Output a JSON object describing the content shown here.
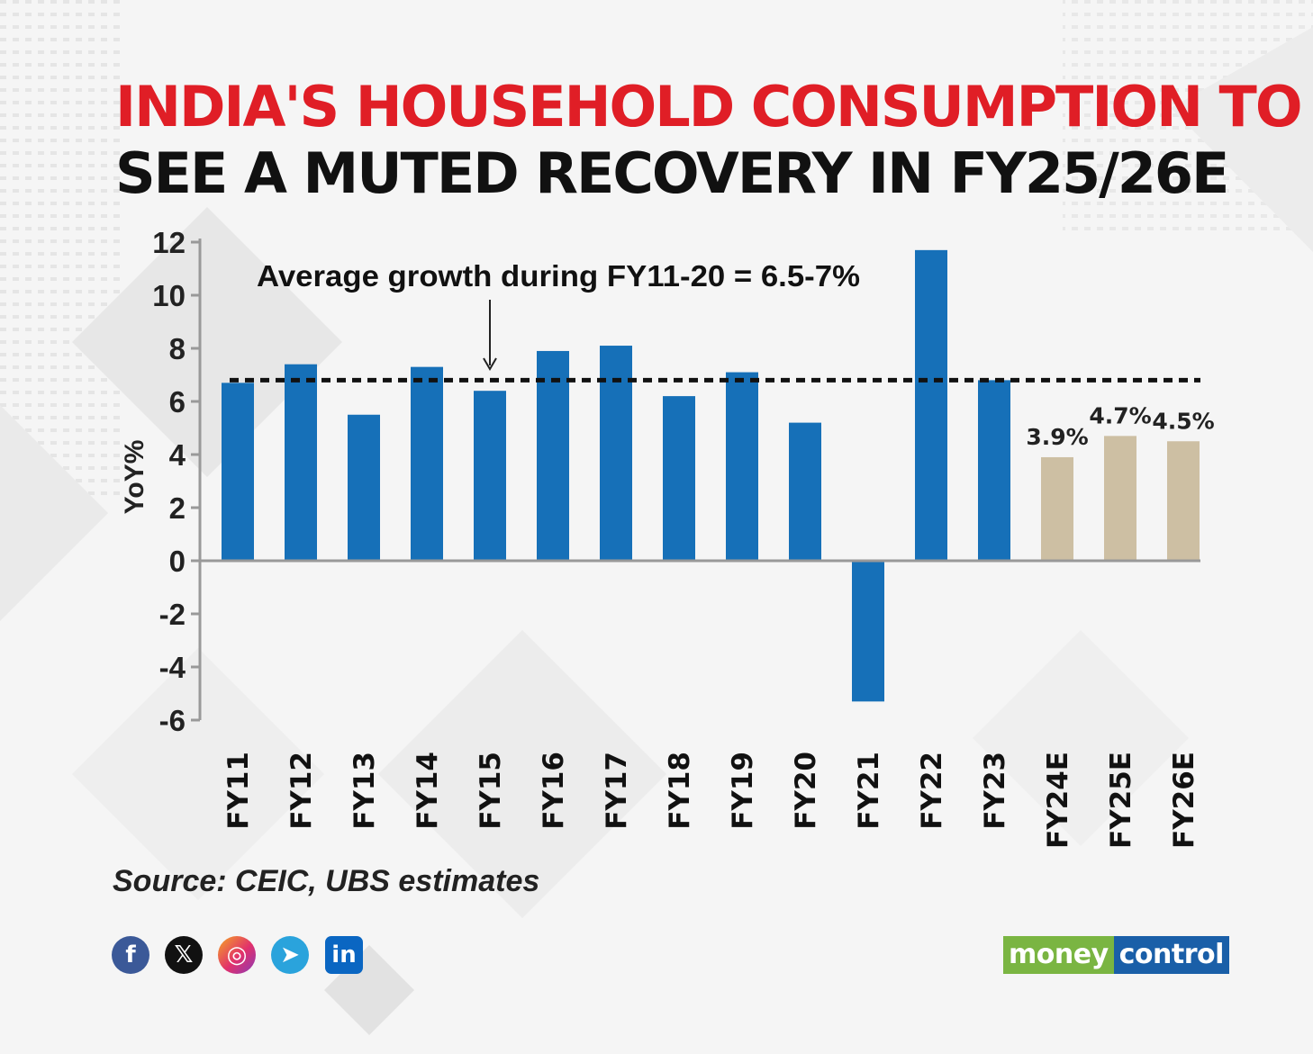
{
  "header": {
    "title_line1": "INDIA'S HOUSEHOLD CONSUMPTION TO",
    "title_line2": "SEE A MUTED RECOVERY IN FY25/26E"
  },
  "chart_data": {
    "type": "bar",
    "categories": [
      "FY11",
      "FY12",
      "FY13",
      "FY14",
      "FY15",
      "FY16",
      "FY17",
      "FY18",
      "FY19",
      "FY20",
      "FY21",
      "FY22",
      "FY23",
      "FY24E",
      "FY25E",
      "FY26E"
    ],
    "values": [
      6.7,
      7.4,
      5.5,
      7.3,
      6.4,
      7.9,
      8.1,
      6.2,
      7.1,
      5.2,
      -5.3,
      11.7,
      6.8,
      3.9,
      4.7,
      4.5
    ],
    "estimate_flags": [
      false,
      false,
      false,
      false,
      false,
      false,
      false,
      false,
      false,
      false,
      false,
      false,
      false,
      true,
      true,
      true
    ],
    "data_labels": [
      "",
      "",
      "",
      "",
      "",
      "",
      "",
      "",
      "",
      "",
      "",
      "",
      "",
      "3.9%",
      "4.7%",
      "4.5%"
    ],
    "ylabel": "YoY%",
    "ylim": [
      -6,
      12
    ],
    "yticks": [
      12,
      10,
      8,
      6,
      4,
      2,
      0,
      -2,
      -4,
      -6
    ],
    "grid": false,
    "reference_line": {
      "value": 6.8,
      "style": "dotted"
    },
    "annotation": {
      "text": "Average growth during FY11-20 = 6.5-7%",
      "points_to": "FY15"
    },
    "colors": {
      "actual": "#1670b8",
      "estimate": "#cdbfa3",
      "axis": "#999999",
      "reference": "#111111"
    }
  },
  "footer": {
    "source": "Source: CEIC, UBS estimates",
    "social_icons": [
      "facebook-icon",
      "x-icon",
      "instagram-icon",
      "telegram-icon",
      "linkedin-icon"
    ],
    "social_glyphs": {
      "facebook": "f",
      "x": "𝕏",
      "instagram": "◎",
      "telegram": "➤",
      "linkedin": "in"
    },
    "logo_part1": "money",
    "logo_part2": "control"
  }
}
